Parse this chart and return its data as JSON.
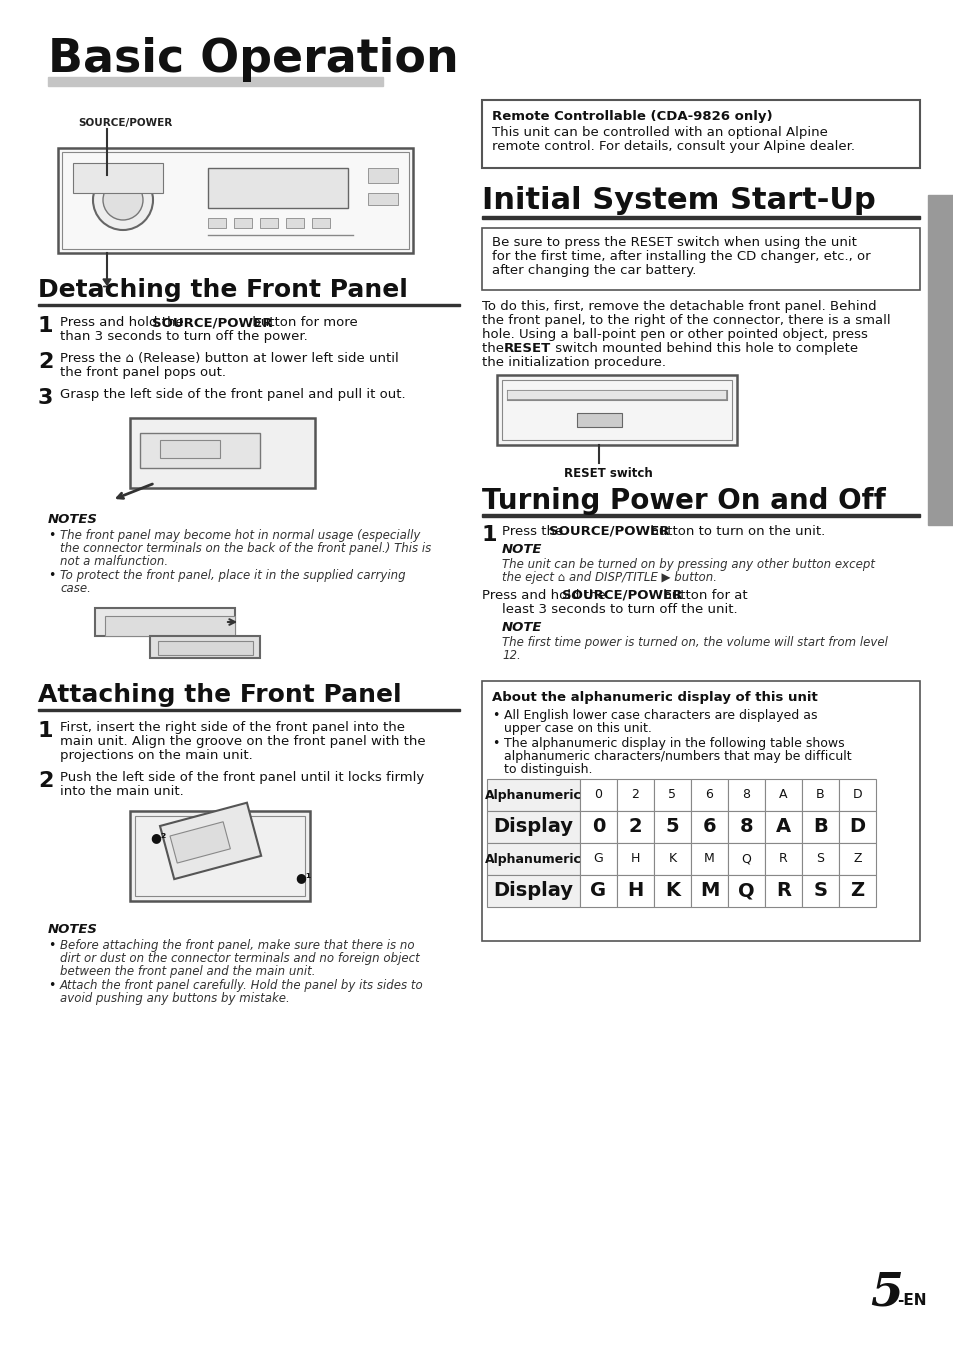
{
  "bg_color": "#ffffff",
  "sidebar_color": "#999999",
  "title": "Basic Operation",
  "page_num": "5",
  "page_en": "-EN",
  "source_power_label": "SOURCE/POWER",
  "detaching_title": "Detaching the Front Panel",
  "step1a": "Press and hold the ",
  "step1b": "SOURCE/POWER",
  "step1c": " button for more",
  "step1d": "than 3 seconds to turn off the power.",
  "step2a": "Press the ⌂ (Release) button at lower left side until",
  "step2b": "the front panel pops out.",
  "step3": "Grasp the left side of the front panel and pull it out.",
  "notes_title": "NOTES",
  "det_note1a": "The front panel may become hot in normal usage (especially",
  "det_note1b": "the connector terminals on the back of the front panel.) This is",
  "det_note1c": "not a malfunction.",
  "det_note2a": "To protect the front panel, place it in the supplied carrying",
  "det_note2b": "case.",
  "attaching_title": "Attaching the Front Panel",
  "att_step1a": "First, insert the right side of the front panel into the",
  "att_step1b": "main unit. Align the groove on the front panel with the",
  "att_step1c": "projections on the main unit.",
  "att_step2a": "Push the left side of the front panel until it locks firmly",
  "att_step2b": "into the main unit.",
  "att_notes_title": "NOTES",
  "att_note1a": "Before attaching the front panel, make sure that there is no",
  "att_note1b": "dirt or dust on the connector terminals and no foreign object",
  "att_note1c": "between the front panel and the main unit.",
  "att_note2a": "Attach the front panel carefully. Hold the panel by its sides to",
  "att_note2b": "avoid pushing any buttons by mistake.",
  "remote_title": "Remote Controllable (CDA-9826 only)",
  "remote_body1": "This unit can be controlled with an optional Alpine",
  "remote_body2": "remote control. For details, consult your Alpine dealer.",
  "initial_title": "Initial System Start-Up",
  "init_box1": "Be sure to press the RESET switch when using the unit",
  "init_box2": "for the first time, after installing the CD changer, etc., or",
  "init_box3": "after changing the car battery.",
  "init_body1": "To do this, first, remove the detachable front panel. Behind",
  "init_body2": "the front panel, to the right of the connector, there is a small",
  "init_body3": "hole. Using a ball-point pen or other pointed object, press",
  "init_body4a": "the ",
  "init_body4b": "RESET",
  "init_body4c": " switch mounted behind this hole to complete",
  "init_body5": "the initialization procedure.",
  "reset_switch": "RESET switch",
  "turning_title": "Turning Power On and Off",
  "turn_step1a": "Press the ",
  "turn_step1b": "SOURCE/POWER",
  "turn_step1c": " button to turn on the unit.",
  "turn_note1_title": "NOTE",
  "turn_note1a": "The unit can be turned on by pressing any other button except",
  "turn_note1b": "the eject ⌂ and DISP/TITLE ▶ button.",
  "turn_step2a": "Press and hold the ",
  "turn_step2b": "SOURCE/POWER",
  "turn_step2c": " button for at",
  "turn_step2d": "least 3 seconds to turn off the unit.",
  "turn_note2_title": "NOTE",
  "turn_note2a": "The first time power is turned on, the volume will start from level",
  "turn_note2b": "12.",
  "alpha_box_title": "About the alphanumeric display of this unit",
  "alpha_b1a": "All English lower case characters are displayed as",
  "alpha_b1b": "upper case on this unit.",
  "alpha_b2a": "The alphanumeric display in the following table shows",
  "alpha_b2b": "alphanumeric characters/numbers that may be difficult",
  "alpha_b2c": "to distinguish.",
  "th1": [
    "Alphanumeric",
    "0",
    "2",
    "5",
    "6",
    "8",
    "A",
    "B",
    "D"
  ],
  "td1": [
    "Display",
    "0",
    "2",
    "5",
    "6",
    "8",
    "A",
    "B",
    "D"
  ],
  "th2": [
    "Alphanumeric",
    "G",
    "H",
    "K",
    "M",
    "Q",
    "R",
    "S",
    "Z"
  ],
  "td2": [
    "Display",
    "G",
    "H",
    "K",
    "M",
    "Q",
    "R",
    "S",
    "Z"
  ]
}
